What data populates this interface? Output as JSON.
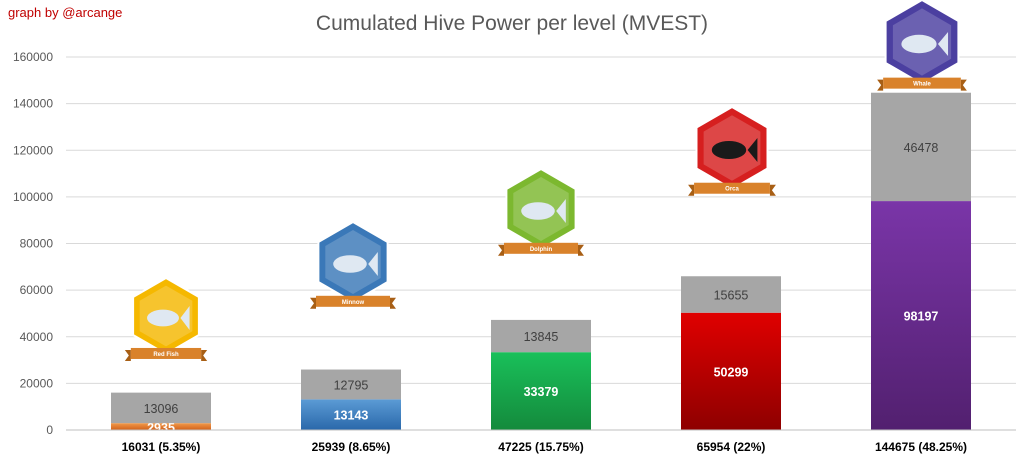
{
  "credit": "graph by @arcange",
  "chart_data": {
    "type": "bar",
    "stacked": true,
    "title": "Cumulated Hive Power per level (MVEST)",
    "xlabel": "",
    "ylabel": "",
    "ylim": [
      0,
      160000
    ],
    "yticks": [
      0,
      20000,
      40000,
      60000,
      80000,
      100000,
      120000,
      140000,
      160000
    ],
    "grid": true,
    "legend": "none",
    "categories": [
      "16031 (5.35%)",
      "25939 (8.65%)",
      "47225 (15.75%)",
      "65954 (22%)",
      "144675 (48.25%)"
    ],
    "series": [
      {
        "values": [
          2935,
          13143,
          33379,
          50299,
          98197
        ],
        "colors": [
          "#e87722",
          "#3d7fc1",
          "#1ea84a",
          "#c00000",
          "#6a2c91"
        ],
        "labels": [
          "2935",
          "13143",
          "33379",
          "50299",
          "98197"
        ]
      },
      {
        "values": [
          13096,
          12795,
          13845,
          15655,
          46478
        ],
        "colors": [
          "#a6a6a6",
          "#a6a6a6",
          "#a6a6a6",
          "#a6a6a6",
          "#a6a6a6"
        ],
        "labels": [
          "13096",
          "12795",
          "13845",
          "15655",
          "46478"
        ]
      }
    ],
    "badges": [
      {
        "label": "Red Fish",
        "icon": "red-fish-icon",
        "color": "#f5b800"
      },
      {
        "label": "Minnow",
        "icon": "minnow-icon",
        "color": "#3a78b8"
      },
      {
        "label": "Dolphin",
        "icon": "dolphin-icon",
        "color": "#7cb82f"
      },
      {
        "label": "Orca",
        "icon": "orca-icon",
        "color": "#d61f1f"
      },
      {
        "label": "Whale",
        "icon": "whale-icon",
        "color": "#4b3fa0"
      }
    ]
  }
}
